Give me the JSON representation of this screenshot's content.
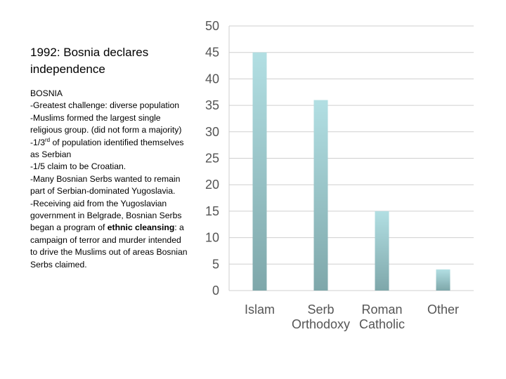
{
  "slide": {
    "title_line1": "1992: Bosnia declares",
    "title_line2": "independence",
    "heading": "BOSNIA",
    "bullets": {
      "b1": "-Greatest challenge: diverse population",
      "b2": "-Muslims formed the largest single religious group. (did not form a majority)",
      "b3_prefix": "-1/3",
      "b3_sup": "rd",
      "b3_suffix": " of population identified themselves as Serbian",
      "b4": "-1/5 claim to be Croatian.",
      "b5": "-Many Bosnian Serbs wanted to remain part of Serbian-dominated Yugoslavia.",
      "b6_prefix": "-Receiving aid from the Yugoslavian government in Belgrade, Bosnian Serbs began a program of ",
      "b6_bold": "ethnic cleansing",
      "b6_suffix": ": a campaign of terror and murder intended to drive the Muslims out of areas Bosnian Serbs claimed."
    }
  },
  "colors": {
    "bar_top": "#b2dfe3",
    "bar_bottom": "#7ea7aa",
    "gridline": "#cfcfcf",
    "axis_text": "#555555"
  },
  "chart_data": {
    "type": "bar",
    "title": "",
    "xlabel": "",
    "ylabel": "",
    "ylim": [
      0,
      50
    ],
    "yticks": [
      "0",
      "5",
      "10",
      "15",
      "20",
      "25",
      "30",
      "35",
      "40",
      "45",
      "50"
    ],
    "categories": [
      {
        "line1": "Islam",
        "line2": ""
      },
      {
        "line1": "Serb",
        "line2": "Orthodoxy"
      },
      {
        "line1": "Roman",
        "line2": "Catholic"
      },
      {
        "line1": "Other",
        "line2": ""
      }
    ],
    "values": [
      45,
      36,
      15,
      4
    ],
    "grid": true,
    "legend": "none"
  }
}
